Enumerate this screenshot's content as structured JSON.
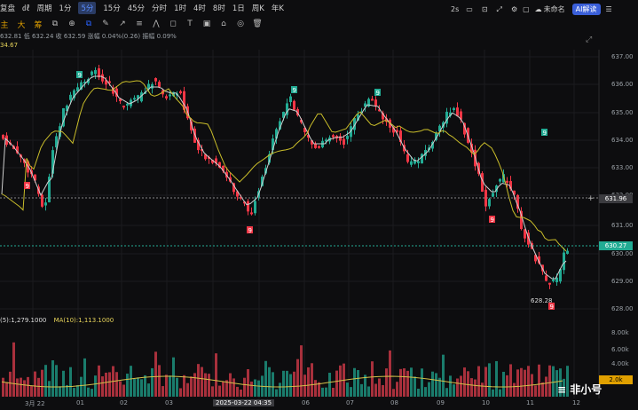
{
  "topbar": {
    "items": [
      "复盘",
      "㎗",
      "周期",
      "1分",
      "5分",
      "15分",
      "45分",
      "分时",
      "1时",
      "4时",
      "8时",
      "1日",
      "周K",
      "年K"
    ],
    "selected": "5分",
    "right": {
      "interval": "2s",
      "layout_name": "未命名",
      "ai": "AI解读"
    }
  },
  "toolbar2": {
    "labels": [
      "主",
      "大",
      "筹"
    ]
  },
  "ohlc": {
    "text": "632.81 低 632.24 收 632.59 涨幅 0.04%(0.26) 振幅 0.09%"
  },
  "ma_top": {
    "text": "34.67"
  },
  "volume_legend": {
    "ma5": "(5):1,279.1000",
    "ma10": "MA(10):1,113.1000"
  },
  "price_axis": [
    "637.00",
    "636.00",
    "635.00",
    "634.00",
    "633.00",
    "632.00",
    "631.00",
    "630.00",
    "629.00",
    "628.00"
  ],
  "volume_axis": [
    "8.00k",
    "6.00k",
    "4.00k"
  ],
  "tags": {
    "crosshair_price": "631.96",
    "last_price": "630.27",
    "low_label": "628.28",
    "vol_tag": "2.0k"
  },
  "time_axis": [
    "3月 22",
    "01",
    "02",
    "03",
    "2025-03-22 04:35",
    "06",
    "07",
    "08",
    "09",
    "10",
    "11",
    "12"
  ],
  "nine_labels": [
    "9",
    "9",
    "9",
    "9",
    "9",
    "9",
    "9",
    "9"
  ],
  "watermark": "非小号",
  "colors": {
    "up": "#22ab94",
    "down": "#f23645",
    "ma_white": "#d0d0d0",
    "ma_yellow": "#cfc22a",
    "accent": "#2962ff"
  }
}
